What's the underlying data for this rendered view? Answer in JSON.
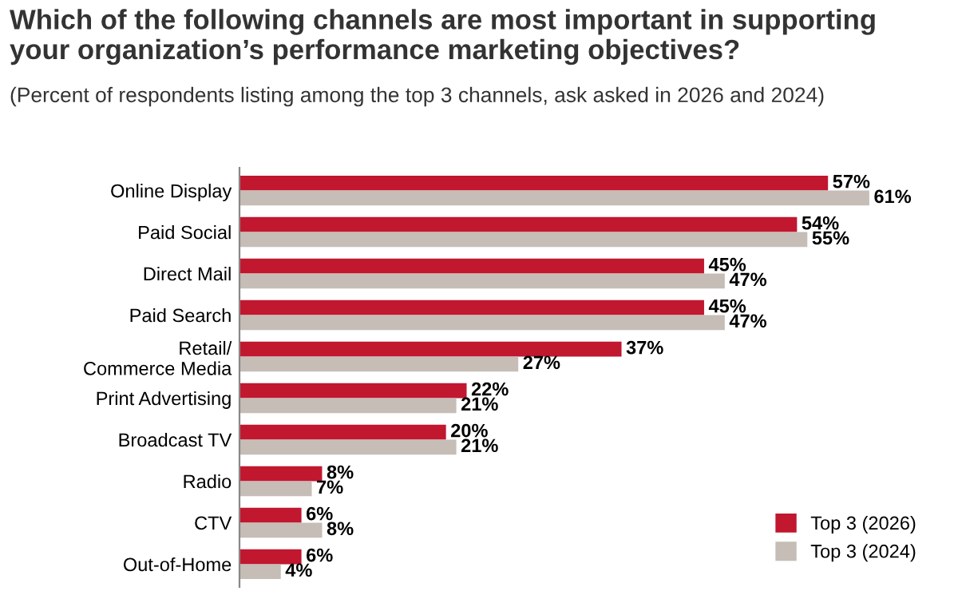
{
  "chart_data": {
    "type": "bar",
    "orientation": "horizontal",
    "title": "Which of the following channels are most important in supporting\nyour organization’s performance marketing objectives?",
    "subtitle": "(Percent of respondents listing among the top 3 channels, ask asked in 2026 and 2024)",
    "categories": [
      "Online Display",
      "Paid Social",
      "Direct Mail",
      "Paid Search",
      "Retail/\nCommerce Media",
      "Print Advertising",
      "Broadcast TV",
      "Radio",
      "CTV",
      "Out-of-Home"
    ],
    "series": [
      {
        "name": "Top 3 (2026)",
        "color": "#c1172f",
        "values": [
          57,
          54,
          45,
          45,
          37,
          22,
          20,
          8,
          6,
          6
        ],
        "value_labels": [
          "57%",
          "54%",
          "45%",
          "45%",
          "37%",
          "22%",
          "20%",
          "8%",
          "6%",
          "6%"
        ]
      },
      {
        "name": "Top 3 (2024)",
        "color": "#c5bdb6",
        "values": [
          61,
          55,
          47,
          47,
          27,
          21,
          21,
          7,
          8,
          4
        ],
        "value_labels": [
          "61%",
          "55%",
          "47%",
          "47%",
          "27%",
          "21%",
          "21%",
          "7%",
          "8%",
          "4%"
        ]
      }
    ],
    "legend": "bottom right",
    "grid": false
  }
}
